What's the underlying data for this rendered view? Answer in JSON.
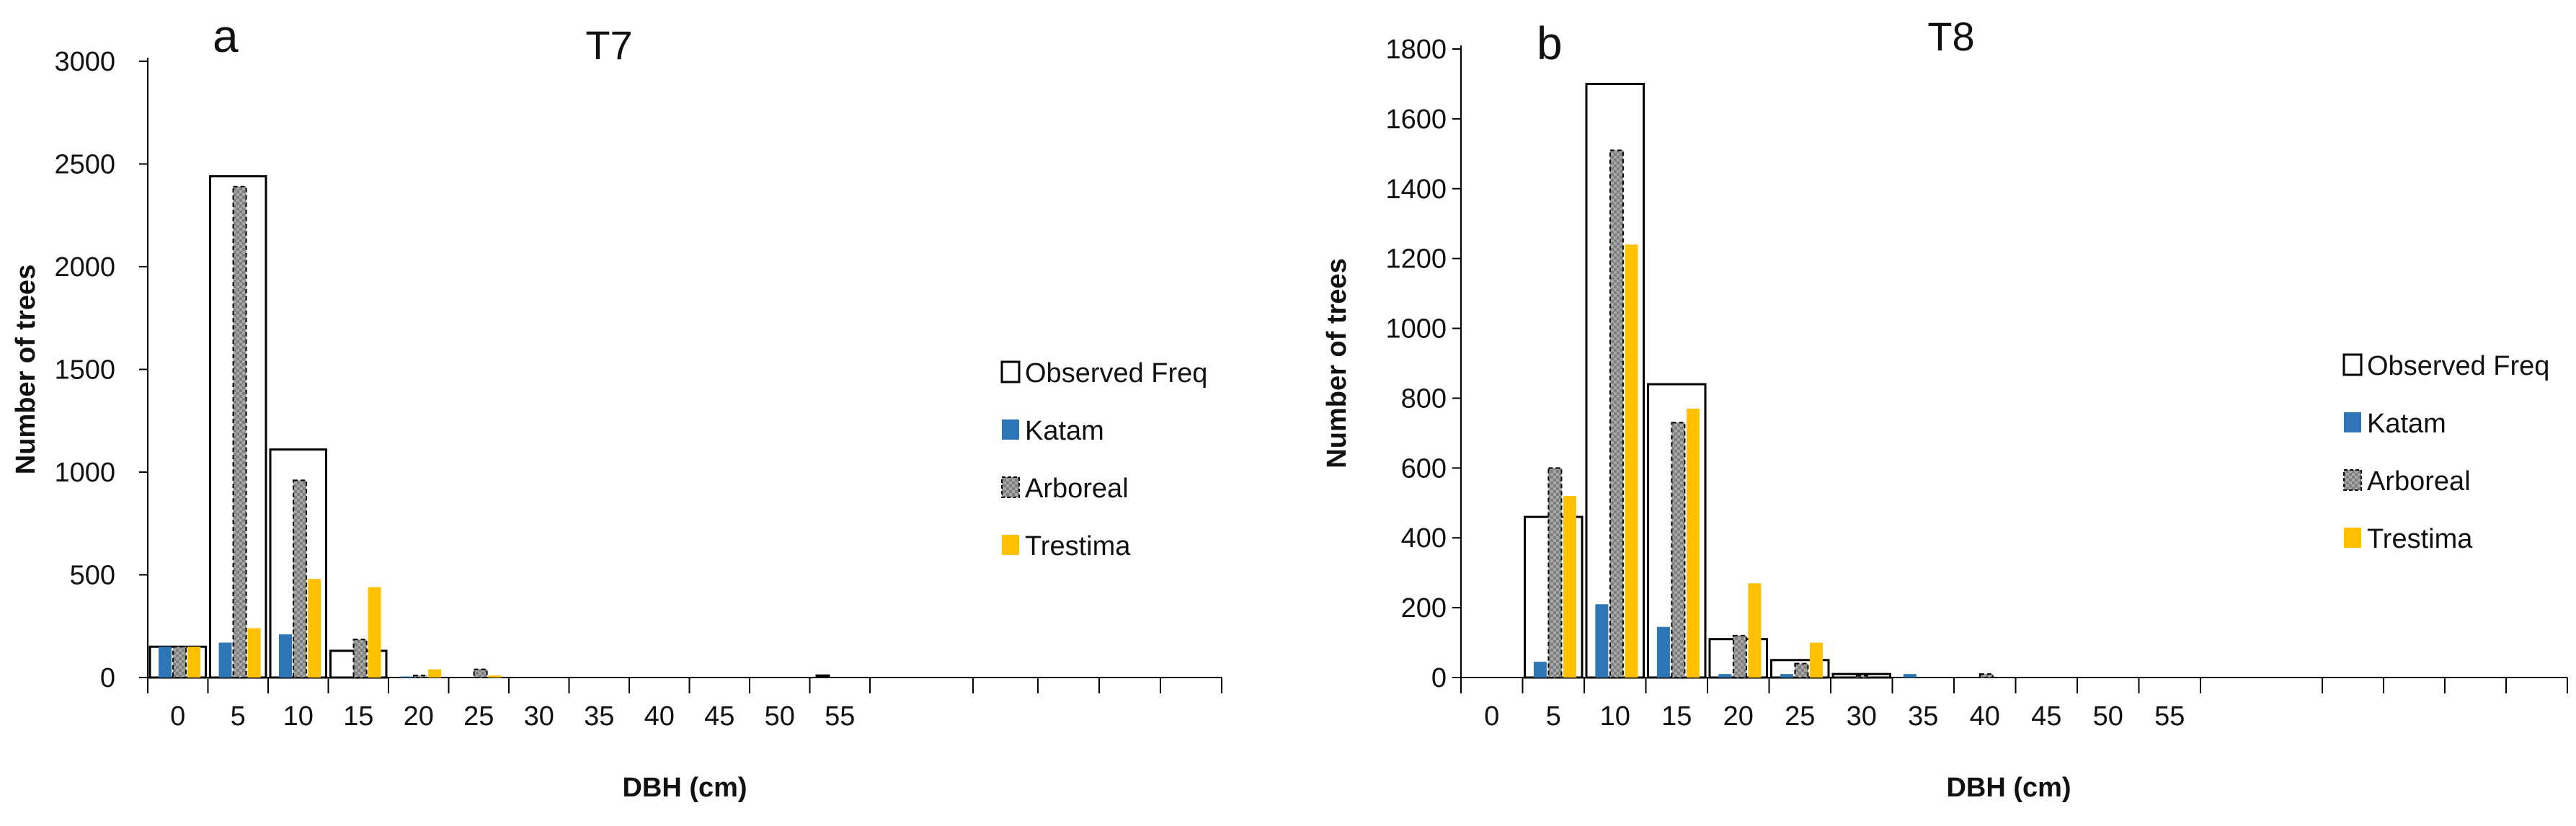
{
  "chart_data": [
    {
      "type": "bar",
      "panel_letter": "a",
      "title": "T7",
      "xlabel": "DBH (cm)",
      "ylabel": "Number of trees",
      "ylim": [
        0,
        3000
      ],
      "yticks": [
        0,
        500,
        1000,
        1500,
        2000,
        2500,
        3000
      ],
      "categories": [
        "0",
        "5",
        "10",
        "15",
        "20",
        "25",
        "30",
        "35",
        "40",
        "45",
        "50",
        "55"
      ],
      "legend_position": "right",
      "series": [
        {
          "name": "Observed Freq",
          "color": "#ffffff",
          "stroke": "#000000",
          "values": [
            150,
            2440,
            1110,
            130,
            0,
            0,
            0,
            0,
            0,
            0,
            0,
            0
          ]
        },
        {
          "name": "Katam",
          "color": "#2e75b6",
          "values": [
            150,
            170,
            210,
            0,
            5,
            0,
            0,
            0,
            0,
            0,
            0,
            0
          ]
        },
        {
          "name": "Arboreal",
          "color": "#9a9a9a",
          "values": [
            150,
            2390,
            960,
            185,
            10,
            40,
            0,
            0,
            0,
            0,
            0,
            0
          ]
        },
        {
          "name": "Trestima",
          "color": "#ffc000",
          "values": [
            150,
            240,
            480,
            440,
            40,
            10,
            0,
            0,
            0,
            0,
            0,
            0
          ]
        }
      ],
      "annotations": [
        {
          "category": "55",
          "value": 15,
          "color": "#000000"
        }
      ]
    },
    {
      "type": "bar",
      "panel_letter": "b",
      "title": "T8",
      "xlabel": "DBH (cm)",
      "ylabel": "Number of trees",
      "ylim": [
        0,
        1800
      ],
      "yticks": [
        0,
        200,
        400,
        600,
        800,
        1000,
        1200,
        1400,
        1600,
        1800
      ],
      "categories": [
        "0",
        "5",
        "10",
        "15",
        "20",
        "25",
        "30",
        "35",
        "40",
        "45",
        "50",
        "55"
      ],
      "legend_position": "right",
      "series": [
        {
          "name": "Observed Freq",
          "color": "#ffffff",
          "stroke": "#000000",
          "values": [
            0,
            460,
            1700,
            840,
            110,
            50,
            10,
            0,
            0,
            0,
            0,
            0
          ]
        },
        {
          "name": "Katam",
          "color": "#2e75b6",
          "values": [
            0,
            45,
            210,
            145,
            10,
            10,
            0,
            10,
            0,
            0,
            0,
            0
          ]
        },
        {
          "name": "Arboreal",
          "color": "#9a9a9a",
          "values": [
            0,
            600,
            1510,
            730,
            120,
            40,
            5,
            0,
            10,
            0,
            0,
            0
          ]
        },
        {
          "name": "Trestima",
          "color": "#ffc000",
          "values": [
            0,
            520,
            1240,
            770,
            270,
            100,
            0,
            0,
            0,
            0,
            0,
            0
          ]
        }
      ]
    }
  ]
}
